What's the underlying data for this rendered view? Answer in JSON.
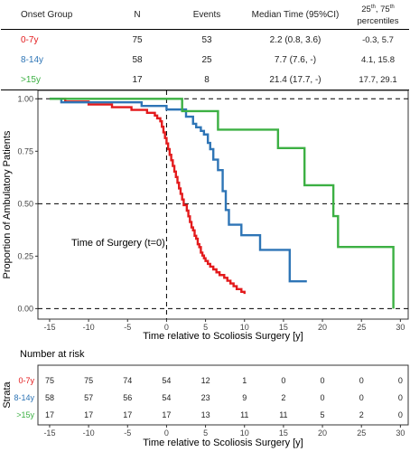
{
  "summary_table": {
    "headers": {
      "group": "Onset Group",
      "n": "N",
      "events": "Events",
      "median": "Median Time (95%CI)",
      "pct_line1_a": "25",
      "pct_line1_sup1": "th",
      "pct_line1_b": ", 75",
      "pct_line1_sup2": "th",
      "pct_line2": "percentiles"
    },
    "rows": [
      {
        "group": "0-7y",
        "color": "#e31a1c",
        "n": "75",
        "events": "53",
        "median": "2.2 (0.8, 3.6)",
        "percentiles": "-0.3, 5.7"
      },
      {
        "group": "8-14y",
        "color": "#2e75b6",
        "n": "58",
        "events": "25",
        "median": "7.7 (7.6, -)",
        "percentiles": "4.1, 15.8"
      },
      {
        "group": ">15y",
        "color": "#3cb043",
        "n": "17",
        "events": "8",
        "median": "21.4 (17.7, -)",
        "percentiles": "17.7, 29.1"
      }
    ]
  },
  "chart_data": [
    {
      "type": "line",
      "step": true,
      "xlabel": "Time relative to Scoliosis Surgery [y]",
      "ylabel": "Proportion of Ambulatory Patients",
      "xlim": [
        -16.5,
        31
      ],
      "ylim": [
        -0.05,
        1.04
      ],
      "xticks": [
        -15,
        -10,
        -5,
        0,
        5,
        10,
        15,
        20,
        25,
        30
      ],
      "yticks": [
        "0.00",
        "0.25",
        "0.50",
        "0.75",
        "1.00"
      ],
      "grid": false,
      "reference_lines": {
        "horizontal": [
          0.0,
          0.5,
          1.0
        ],
        "vertical": [
          0
        ]
      },
      "annotation": "Time of Surgery (t=0)",
      "series": [
        {
          "name": "0-7y",
          "color": "#e31a1c",
          "x": [
            -15,
            -13,
            -10,
            -7,
            -4.5,
            -2.5,
            -1.5,
            -1.2,
            -0.8,
            -0.6,
            -0.4,
            -0.2,
            0,
            0.2,
            0.4,
            0.6,
            0.8,
            1.0,
            1.2,
            1.4,
            1.6,
            1.8,
            2.0,
            2.2,
            2.6,
            2.8,
            3.0,
            3.2,
            3.4,
            3.6,
            3.8,
            4.0,
            4.2,
            4.4,
            4.6,
            4.8,
            5.0,
            5.3,
            5.6,
            6.0,
            6.4,
            6.8,
            7.4,
            7.8,
            8.2,
            8.6,
            9.0,
            9.6,
            10.0
          ],
          "y": [
            1.0,
            0.987,
            0.973,
            0.96,
            0.947,
            0.933,
            0.92,
            0.907,
            0.893,
            0.867,
            0.84,
            0.813,
            0.787,
            0.76,
            0.733,
            0.707,
            0.68,
            0.653,
            0.627,
            0.6,
            0.573,
            0.547,
            0.52,
            0.493,
            0.467,
            0.44,
            0.413,
            0.387,
            0.373,
            0.347,
            0.333,
            0.307,
            0.293,
            0.267,
            0.253,
            0.24,
            0.227,
            0.213,
            0.2,
            0.187,
            0.173,
            0.16,
            0.147,
            0.133,
            0.12,
            0.107,
            0.093,
            0.08,
            0.07
          ]
        },
        {
          "name": "8-14y",
          "color": "#2e75b6",
          "x": [
            -15,
            -13.5,
            -3.2,
            0,
            2.5,
            3.4,
            3.8,
            4.4,
            4.8,
            5.3,
            5.6,
            6.0,
            6.6,
            7.2,
            7.6,
            8.0,
            9.6,
            12.0,
            15.8,
            18.0
          ],
          "y": [
            1.0,
            0.983,
            0.966,
            0.949,
            0.915,
            0.881,
            0.864,
            0.847,
            0.83,
            0.79,
            0.76,
            0.71,
            0.66,
            0.56,
            0.47,
            0.4,
            0.35,
            0.28,
            0.13,
            0.13
          ]
        },
        {
          "name": ">15y",
          "color": "#3cb043",
          "x": [
            -15,
            2.0,
            6.6,
            14.3,
            17.7,
            21.4,
            22.0,
            29.1,
            29.1
          ],
          "y": [
            1.0,
            0.941,
            0.853,
            0.765,
            0.588,
            0.441,
            0.294,
            0.294,
            0.0
          ]
        }
      ]
    },
    {
      "type": "table",
      "title": "Number at risk",
      "ylabel": "Strata",
      "xlabel": "Time relative to Scoliosis Surgery [y]",
      "xticks": [
        -15,
        -10,
        -5,
        0,
        5,
        10,
        15,
        20,
        25,
        30
      ],
      "rows": [
        {
          "name": "0-7y",
          "color": "#e31a1c",
          "values": [
            75,
            75,
            74,
            54,
            12,
            1,
            0,
            0,
            0,
            0
          ]
        },
        {
          "name": "8-14y",
          "color": "#2e75b6",
          "values": [
            58,
            57,
            56,
            54,
            23,
            9,
            2,
            0,
            0,
            0
          ]
        },
        {
          "name": ">15y",
          "color": "#3cb043",
          "values": [
            17,
            17,
            17,
            17,
            13,
            11,
            11,
            5,
            2,
            0
          ]
        }
      ]
    }
  ]
}
